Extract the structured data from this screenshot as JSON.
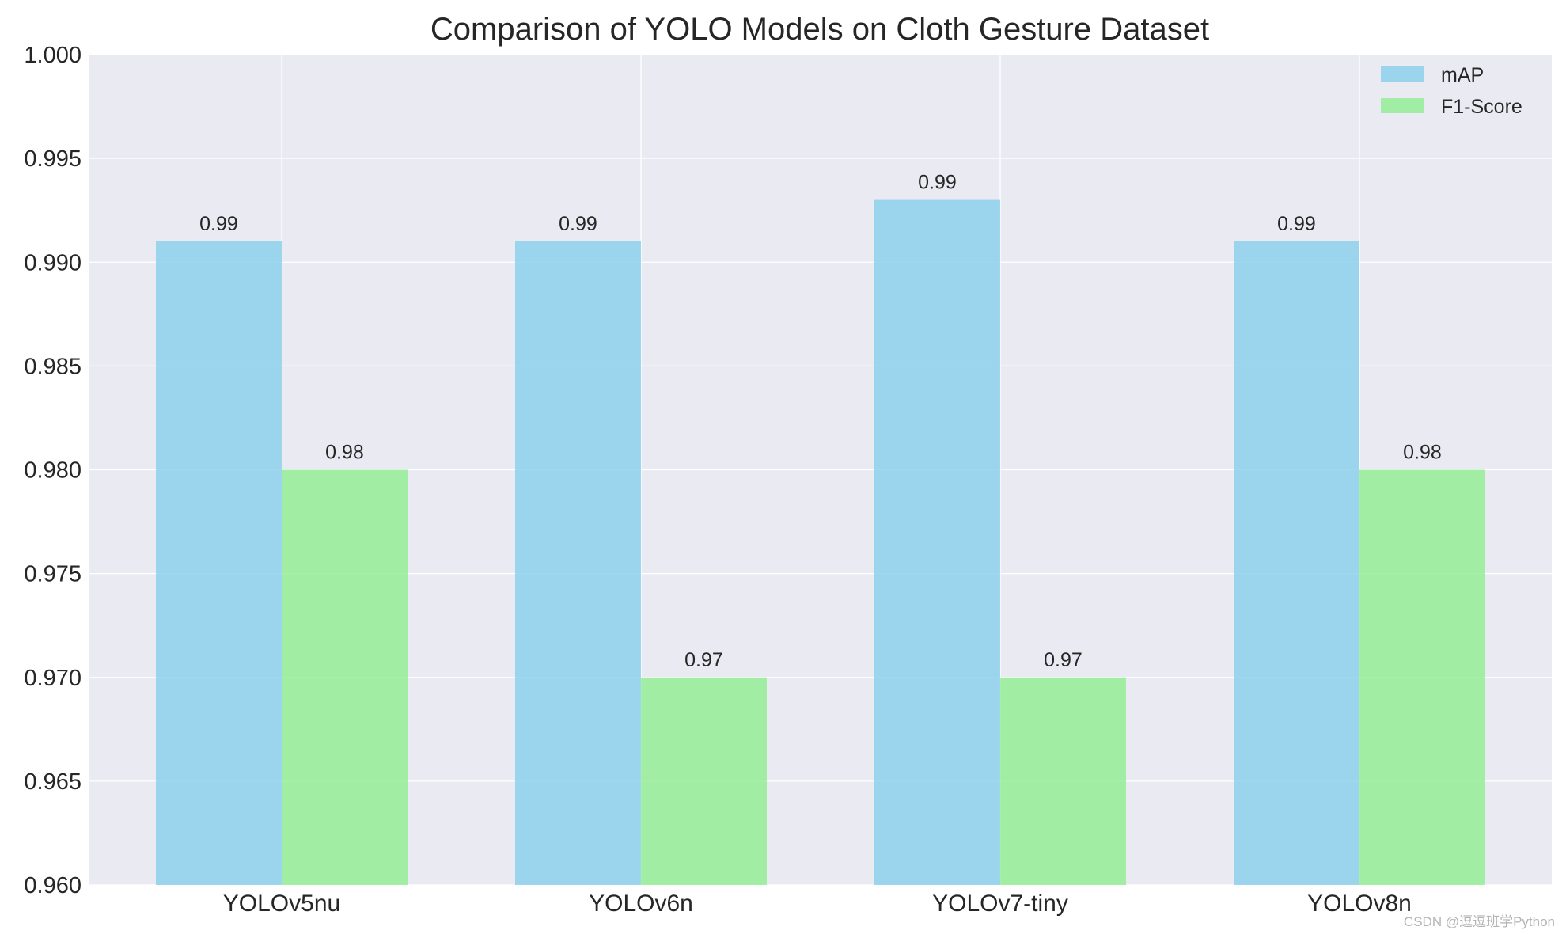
{
  "chart_data": {
    "type": "bar",
    "title": "Comparison of YOLO Models on Cloth Gesture Dataset",
    "xlabel": "",
    "ylabel": "",
    "categories": [
      "YOLOv5nu",
      "YOLOv6n",
      "YOLOv7-tiny",
      "YOLOv8n"
    ],
    "series": [
      {
        "name": "mAP",
        "values": [
          0.991,
          0.991,
          0.993,
          0.991
        ],
        "labels": [
          "0.99",
          "0.99",
          "0.99",
          "0.99"
        ],
        "color": "#87ceeb"
      },
      {
        "name": "F1-Score",
        "values": [
          0.98,
          0.97,
          0.97,
          0.98
        ],
        "labels": [
          "0.98",
          "0.97",
          "0.97",
          "0.98"
        ],
        "color": "#90ee90"
      }
    ],
    "ylim": [
      0.96,
      1.0
    ],
    "yticks": [
      "0.960",
      "0.965",
      "0.970",
      "0.975",
      "0.980",
      "0.985",
      "0.990",
      "0.995",
      "1.000"
    ],
    "ytick_values": [
      0.96,
      0.965,
      0.97,
      0.975,
      0.98,
      0.985,
      0.99,
      0.995,
      1.0
    ],
    "grid": true,
    "legend_position": "top-right",
    "background": "#eaeaf2"
  },
  "watermark": "CSDN @逗逗班学Python"
}
